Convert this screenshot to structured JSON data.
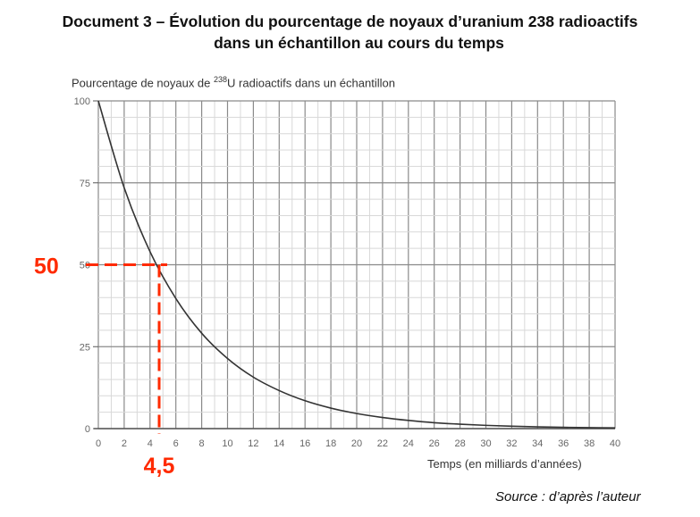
{
  "chart_data": {
    "type": "line",
    "title_line1": "Document 3 – Évolution du pourcentage de noyaux d’uranium 238 radioactifs",
    "title_line2": "dans un échantillon au cours du temps",
    "ylabel_prefix": "Pourcentage de noyaux de ",
    "ylabel_sup": "238",
    "ylabel_suffix": "U radioactifs dans un échantillon",
    "xlabel": "Temps (en milliards d’années)",
    "xlim": [
      0,
      40
    ],
    "ylim": [
      0,
      100
    ],
    "x_ticks": [
      0,
      2,
      4,
      6,
      8,
      10,
      12,
      14,
      16,
      18,
      20,
      22,
      24,
      26,
      28,
      30,
      32,
      34,
      36,
      38,
      40
    ],
    "y_ticks": [
      0,
      25,
      50,
      75,
      100
    ],
    "grid": true,
    "series": [
      {
        "name": "uranium 238",
        "x": [
          0,
          2,
          4,
          6,
          8,
          10,
          12,
          14,
          16,
          18,
          20,
          22,
          24,
          26,
          28,
          30,
          32,
          34,
          36,
          38,
          40
        ],
        "y": [
          100,
          73.5,
          54.0,
          39.7,
          29.1,
          21.4,
          15.7,
          11.6,
          8.5,
          6.25,
          4.6,
          3.4,
          2.5,
          1.8,
          1.35,
          0.99,
          0.73,
          0.53,
          0.39,
          0.29,
          0.21
        ],
        "color": "#333333"
      }
    ],
    "annotations": [
      {
        "text": "50",
        "y": 50,
        "color": "#ff2a00"
      },
      {
        "text": "4,5",
        "x": 4.5,
        "color": "#ff2a00"
      }
    ],
    "source": "Source : d’après l’auteur"
  }
}
